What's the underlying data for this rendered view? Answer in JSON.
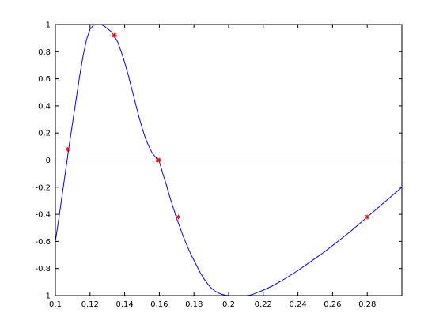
{
  "chart_data": {
    "type": "line",
    "title": "",
    "xlabel": "",
    "ylabel": "",
    "xlim": [
      0.1,
      0.3
    ],
    "ylim": [
      -1,
      1
    ],
    "x_ticks": [
      0.1,
      0.12,
      0.14,
      0.16,
      0.18,
      0.2,
      0.22,
      0.24,
      0.26,
      0.28
    ],
    "x_tick_labels": [
      "0.1",
      "0.12",
      "0.14",
      "0.16",
      "0.18",
      "0.2",
      "0.22",
      "0.24",
      "0.26",
      "0.28"
    ],
    "y_ticks": [
      -1,
      -0.8,
      -0.6,
      -0.4,
      -0.2,
      0,
      0.2,
      0.4,
      0.6,
      0.8,
      1
    ],
    "y_tick_labels": [
      "-1",
      "-0.8",
      "-0.6",
      "-0.4",
      "-0.2",
      "0",
      "0.2",
      "0.4",
      "0.6",
      "0.8",
      "1"
    ],
    "grid": false,
    "legend": "none",
    "series": [
      {
        "kind": "line",
        "color": "#0000ff",
        "x": [
          0.1,
          0.102,
          0.104,
          0.106,
          0.108,
          0.11,
          0.112,
          0.114,
          0.116,
          0.118,
          0.12,
          0.122,
          0.124,
          0.126,
          0.128,
          0.13,
          0.132,
          0.134,
          0.136,
          0.138,
          0.14,
          0.142,
          0.144,
          0.146,
          0.148,
          0.15,
          0.152,
          0.154,
          0.156,
          0.158,
          0.16,
          0.162,
          0.164,
          0.166,
          0.168,
          0.17,
          0.172,
          0.174,
          0.176,
          0.178,
          0.18,
          0.182,
          0.184,
          0.186,
          0.188,
          0.19,
          0.192,
          0.194,
          0.196,
          0.198,
          0.2,
          0.202,
          0.204,
          0.206,
          0.208,
          0.21,
          0.212,
          0.214,
          0.216,
          0.218,
          0.22,
          0.225,
          0.23,
          0.235,
          0.24,
          0.245,
          0.25,
          0.255,
          0.26,
          0.265,
          0.27,
          0.275,
          0.28,
          0.285,
          0.29,
          0.295,
          0.3
        ],
        "y": [
          -0.6,
          -0.43,
          -0.25,
          -0.07,
          0.11,
          0.28,
          0.45,
          0.62,
          0.77,
          0.89,
          0.965,
          0.995,
          1.0,
          1.0,
          0.99,
          0.97,
          0.95,
          0.915,
          0.87,
          0.8,
          0.72,
          0.63,
          0.53,
          0.43,
          0.33,
          0.24,
          0.16,
          0.1,
          0.05,
          0.02,
          -0.01,
          -0.1,
          -0.18,
          -0.27,
          -0.35,
          -0.43,
          -0.5,
          -0.57,
          -0.63,
          -0.69,
          -0.74,
          -0.79,
          -0.84,
          -0.88,
          -0.915,
          -0.945,
          -0.965,
          -0.98,
          -0.99,
          -0.997,
          -1.0,
          -1.0,
          -1.0,
          -1.0,
          -1.0,
          -1.0,
          -0.998,
          -0.99,
          -0.98,
          -0.97,
          -0.96,
          -0.93,
          -0.895,
          -0.855,
          -0.815,
          -0.77,
          -0.725,
          -0.68,
          -0.63,
          -0.58,
          -0.53,
          -0.475,
          -0.42,
          -0.365,
          -0.31,
          -0.255,
          -0.2
        ]
      },
      {
        "kind": "line",
        "color": "#000000",
        "x": [
          0.1,
          0.3
        ],
        "y": [
          0,
          0
        ]
      },
      {
        "kind": "scatter",
        "marker": "*",
        "color": "#ff0000",
        "x": [
          0.107,
          0.134,
          0.159,
          0.16,
          0.171,
          0.28
        ],
        "y": [
          0.08,
          0.92,
          0.0,
          0.0,
          -0.42,
          -0.42
        ]
      }
    ]
  }
}
